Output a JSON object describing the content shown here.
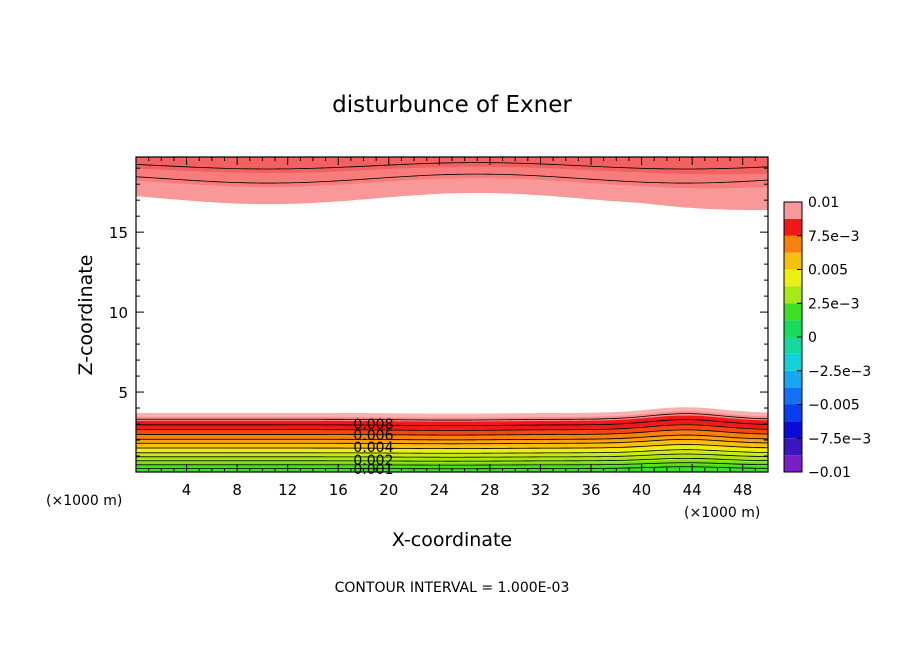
{
  "chart_data": {
    "type": "heatmap",
    "title": "disturbunce of Exner",
    "xlabel": "X-coordinate",
    "ylabel": "Z-coordinate",
    "x_unit_left": "(×1000 m)",
    "x_unit_right": "(×1000 m)",
    "footer": "CONTOUR INTERVAL = 1.000E-03",
    "xlim": [
      0,
      50
    ],
    "ylim": [
      0,
      19.7
    ],
    "x_ticks": [
      {
        "v": 4,
        "label": "4"
      },
      {
        "v": 8,
        "label": "8"
      },
      {
        "v": 12,
        "label": "12"
      },
      {
        "v": 16,
        "label": "16"
      },
      {
        "v": 20,
        "label": "20"
      },
      {
        "v": 24,
        "label": "24"
      },
      {
        "v": 28,
        "label": "28"
      },
      {
        "v": 32,
        "label": "32"
      },
      {
        "v": 36,
        "label": "36"
      },
      {
        "v": 40,
        "label": "40"
      },
      {
        "v": 44,
        "label": "44"
      },
      {
        "v": 48,
        "label": "48"
      }
    ],
    "y_ticks": [
      {
        "v": 5,
        "label": "5"
      },
      {
        "v": 10,
        "label": "10"
      },
      {
        "v": 15,
        "label": "15"
      }
    ],
    "colorbar": {
      "min": -0.01,
      "max": 0.01,
      "levels": [
        {
          "from": -0.01,
          "to": -0.00875,
          "color": "#7a1fc4"
        },
        {
          "from": -0.00875,
          "to": -0.0075,
          "color": "#3a16c0"
        },
        {
          "from": -0.0075,
          "to": -0.00625,
          "color": "#0b0bd8"
        },
        {
          "from": -0.00625,
          "to": -0.005,
          "color": "#0a3cf0"
        },
        {
          "from": -0.005,
          "to": -0.00375,
          "color": "#1470f5"
        },
        {
          "from": -0.00375,
          "to": -0.0025,
          "color": "#15a8f0"
        },
        {
          "from": -0.0025,
          "to": -0.00125,
          "color": "#12d2d8"
        },
        {
          "from": -0.00125,
          "to": 0,
          "color": "#14d8a0"
        },
        {
          "from": 0,
          "to": 0.00125,
          "color": "#16dc5a"
        },
        {
          "from": 0.00125,
          "to": 0.0025,
          "color": "#3ce024"
        },
        {
          "from": 0.0025,
          "to": 0.00375,
          "color": "#a8e814"
        },
        {
          "from": 0.00375,
          "to": 0.005,
          "color": "#eaf012"
        },
        {
          "from": 0.005,
          "to": 0.00625,
          "color": "#f8c00e"
        },
        {
          "from": 0.00625,
          "to": 0.0075,
          "color": "#f8800c"
        },
        {
          "from": 0.0075,
          "to": 0.00875,
          "color": "#f01818"
        },
        {
          "from": 0.00875,
          "to": 0.01,
          "color": "#f89898"
        }
      ],
      "tick_labels": [
        {
          "v": 0.01,
          "label": "0.01"
        },
        {
          "v": 0.0075,
          "label": "7.5e−3"
        },
        {
          "v": 0.005,
          "label": "0.005"
        },
        {
          "v": 0.0025,
          "label": "2.5e−3"
        },
        {
          "v": 0,
          "label": "0"
        },
        {
          "v": -0.0025,
          "label": "−2.5e−3"
        },
        {
          "v": -0.005,
          "label": "−0.005"
        },
        {
          "v": -0.0075,
          "label": "−7.5e−3"
        },
        {
          "v": -0.01,
          "label": "−0.01"
        }
      ]
    },
    "top_bands": [
      {
        "color": "#f89898",
        "z_base": 17.1,
        "wave_amp": 0.35
      },
      {
        "color": "#f87c7c",
        "z_base": 18.1,
        "wave_amp": 0.28
      },
      {
        "color": "#f26060",
        "z_base": 18.9,
        "wave_amp": 0.2
      }
    ],
    "bottom_bands": [
      {
        "color": "#f8b0b0",
        "z_top": 3.7,
        "bump": 0.35
      },
      {
        "color": "#f88c8c",
        "z_top": 3.45,
        "bump": 0.35
      },
      {
        "color": "#f01818",
        "z_top": 3.2,
        "bump": 0.33
      },
      {
        "color": "#f24810",
        "z_top": 2.7,
        "bump": 0.3
      },
      {
        "color": "#f8800c",
        "z_top": 2.35,
        "bump": 0.27
      },
      {
        "color": "#f8a40c",
        "z_top": 2.0,
        "bump": 0.24
      },
      {
        "color": "#f8c00e",
        "z_top": 1.75,
        "bump": 0.22
      },
      {
        "color": "#eaf012",
        "z_top": 1.45,
        "bump": 0.2
      },
      {
        "color": "#c8ec12",
        "z_top": 1.15,
        "bump": 0.18
      },
      {
        "color": "#a8e814",
        "z_top": 0.9,
        "bump": 0.16
      },
      {
        "color": "#6ae01a",
        "z_top": 0.6,
        "bump": 0.13
      },
      {
        "color": "#3ce024",
        "z_top": 0.35,
        "bump": 0.1
      }
    ],
    "contour_labels": [
      {
        "text": "0.008",
        "x": 17.2,
        "z": 3.0
      },
      {
        "text": "0.006",
        "x": 17.2,
        "z": 2.3
      },
      {
        "text": "0.004",
        "x": 17.2,
        "z": 1.55
      },
      {
        "text": "0.002",
        "x": 17.2,
        "z": 0.75
      },
      {
        "text": "0.001",
        "x": 17.2,
        "z": 0.2
      }
    ]
  }
}
